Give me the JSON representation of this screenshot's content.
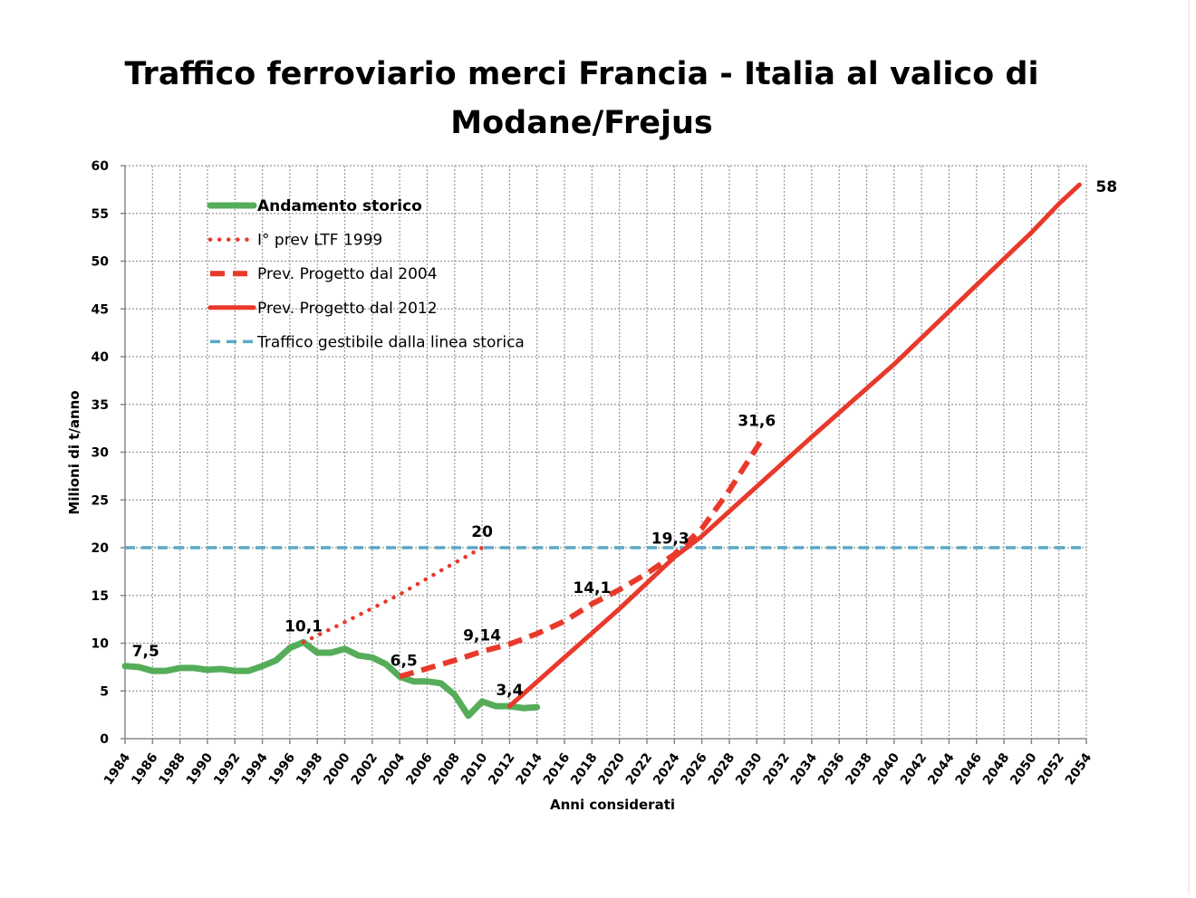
{
  "chart_data": {
    "type": "line",
    "title": [
      "Traffico ferroviario merci  Francia - Italia al valico di",
      "Modane/Frejus"
    ],
    "xlabel": "Anni considerati",
    "ylabel": "Milioni di t/anno",
    "xlim": [
      1984,
      2054
    ],
    "ylim": [
      0,
      60
    ],
    "x_ticks": [
      1984,
      1986,
      1988,
      1990,
      1992,
      1994,
      1996,
      1998,
      2000,
      2002,
      2004,
      2006,
      2008,
      2010,
      2012,
      2014,
      2016,
      2018,
      2020,
      2022,
      2024,
      2026,
      2028,
      2030,
      2032,
      2034,
      2036,
      2038,
      2040,
      2042,
      2044,
      2046,
      2048,
      2050,
      2052,
      2054
    ],
    "y_ticks": [
      0,
      5,
      10,
      15,
      20,
      25,
      30,
      35,
      40,
      45,
      50,
      55,
      60
    ],
    "grid": true,
    "legend_position": "top-left",
    "series": [
      {
        "name": "Andamento storico",
        "style": "solid-thick",
        "color": "#55ad5a",
        "points": [
          [
            1984,
            7.6
          ],
          [
            1985,
            7.5
          ],
          [
            1986,
            7.1
          ],
          [
            1987,
            7.1
          ],
          [
            1988,
            7.4
          ],
          [
            1989,
            7.4
          ],
          [
            1990,
            7.2
          ],
          [
            1991,
            7.3
          ],
          [
            1992,
            7.1
          ],
          [
            1993,
            7.1
          ],
          [
            1994,
            7.6
          ],
          [
            1995,
            8.2
          ],
          [
            1996,
            9.5
          ],
          [
            1997,
            10.1
          ],
          [
            1998,
            9.0
          ],
          [
            1999,
            9.0
          ],
          [
            2000,
            9.4
          ],
          [
            2001,
            8.7
          ],
          [
            2002,
            8.5
          ],
          [
            2003,
            7.8
          ],
          [
            2004,
            6.5
          ],
          [
            2005,
            6.0
          ],
          [
            2006,
            6.0
          ],
          [
            2007,
            5.8
          ],
          [
            2008,
            4.6
          ],
          [
            2009,
            2.4
          ],
          [
            2010,
            3.9
          ],
          [
            2011,
            3.4
          ],
          [
            2012,
            3.4
          ],
          [
            2013,
            3.2
          ],
          [
            2014,
            3.3
          ]
        ]
      },
      {
        "name": "I° prev LTF 1999",
        "style": "dotted",
        "color": "#e8392b",
        "points": [
          [
            1997,
            10.1
          ],
          [
            2000,
            12.2
          ],
          [
            2004,
            15.1
          ],
          [
            2007,
            17.6
          ],
          [
            2010,
            20
          ]
        ]
      },
      {
        "name": "Prev. Progetto dal 2004",
        "style": "dashed",
        "color": "#e8392b",
        "points": [
          [
            2004,
            6.5
          ],
          [
            2008,
            8.2
          ],
          [
            2010,
            9.14
          ],
          [
            2012,
            9.9
          ],
          [
            2014,
            11
          ],
          [
            2016,
            12.3
          ],
          [
            2018,
            14.1
          ],
          [
            2020,
            15.6
          ],
          [
            2022,
            17.3
          ],
          [
            2024,
            19.3
          ],
          [
            2026,
            22
          ],
          [
            2028,
            26
          ],
          [
            2030.5,
            31.6
          ]
        ]
      },
      {
        "name": "Prev. Progetto dal 2012",
        "style": "solid",
        "color": "#e8392b",
        "points": [
          [
            2012,
            3.4
          ],
          [
            2016,
            8.5
          ],
          [
            2020,
            13.6
          ],
          [
            2024,
            19
          ],
          [
            2026,
            21.2
          ],
          [
            2030,
            26.4
          ],
          [
            2034,
            31.6
          ],
          [
            2040,
            39.2
          ],
          [
            2046,
            47.5
          ],
          [
            2050,
            53
          ],
          [
            2052,
            56
          ],
          [
            2053.5,
            58
          ]
        ]
      },
      {
        "name": "Traffico gestibile dalla linea storica",
        "style": "dashed-light",
        "color": "#5aa8c8",
        "points": [
          [
            1984,
            20
          ],
          [
            2054,
            20
          ]
        ]
      }
    ],
    "annotations": [
      {
        "text": "7,5",
        "x": 1985.5,
        "y": 7.5
      },
      {
        "text": "10,1",
        "x": 1997,
        "y": 10.1
      },
      {
        "text": "6,5",
        "x": 2004.3,
        "y": 6.5
      },
      {
        "text": "3,4",
        "x": 2012,
        "y": 3.4
      },
      {
        "text": "9,14",
        "x": 2010,
        "y": 9.14
      },
      {
        "text": "14,1",
        "x": 2018,
        "y": 14.1
      },
      {
        "text": "19,3",
        "x": 2023.7,
        "y": 19.3
      },
      {
        "text": "20",
        "x": 2010,
        "y": 20
      },
      {
        "text": "31,6",
        "x": 2030,
        "y": 31.6
      },
      {
        "text": "58",
        "x": 2053.5,
        "y": 58
      }
    ]
  }
}
